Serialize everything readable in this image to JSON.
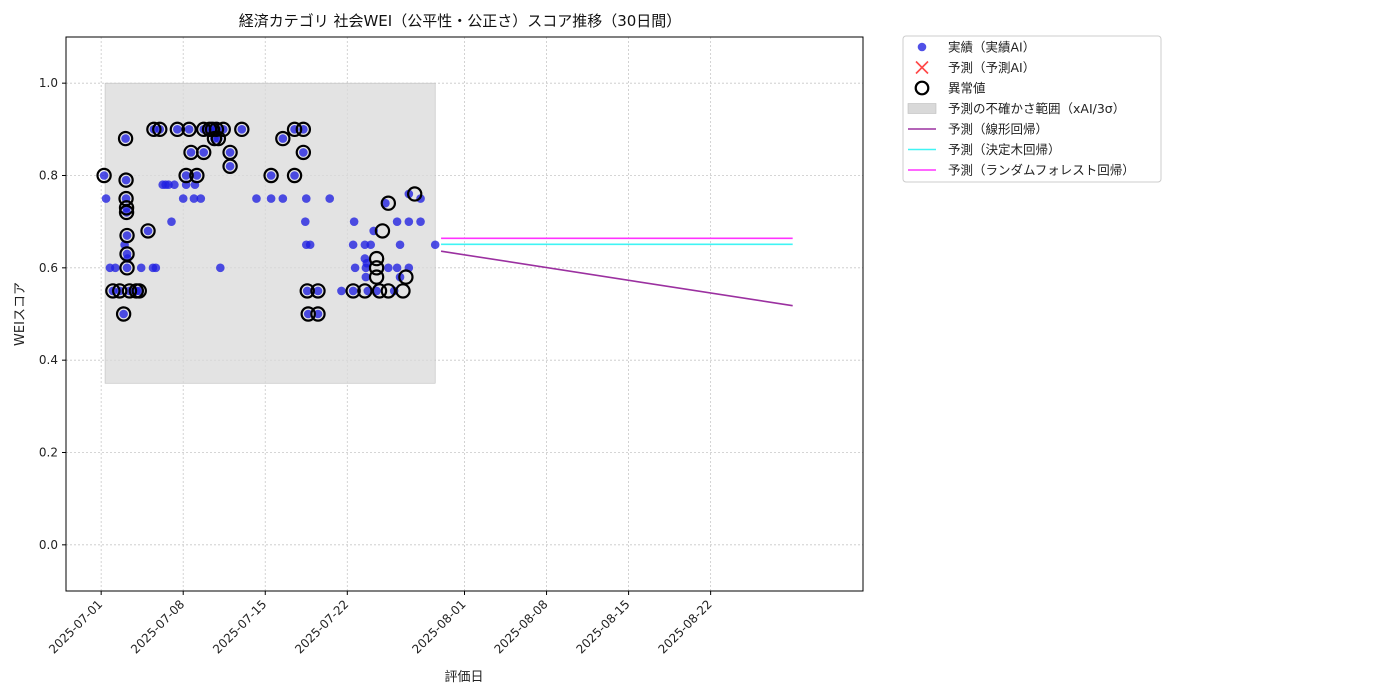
{
  "chart_data": {
    "type": "scatter",
    "title": "経済カテゴリ 社会WEI（公平性・公正さ）スコア推移（30日間）",
    "xlabel": "評価日",
    "ylabel": "WEIスコア",
    "xlim": [
      "2025-06-28",
      "2025-09-04"
    ],
    "ylim": [
      -0.1,
      1.1
    ],
    "x_ticks": [
      "2025-07-01",
      "2025-07-08",
      "2025-07-15",
      "2025-07-22",
      "2025-08-01",
      "2025-08-08",
      "2025-08-15",
      "2025-08-22"
    ],
    "y_ticks": [
      0.0,
      0.2,
      0.4,
      0.6,
      0.8,
      1.0
    ],
    "y_tick_labels": [
      "0.0",
      "0.2",
      "0.4",
      "0.6",
      "0.8",
      "1.0"
    ],
    "grid": true,
    "legend_position": "outside-top-right",
    "colors": {
      "actual": "#1f1fe0",
      "predicted_ai": "#ff3333",
      "anomaly": "#000000",
      "band": "#d9d9d9",
      "linear": "#9b30a0",
      "tree": "#40f4f4",
      "forest": "#ff33ff"
    },
    "uncertainty_band": {
      "x_start": "2025-07-01 08:00",
      "x_end": "2025-07-29 12:00",
      "y_low": 0.35,
      "y_high": 1.0
    },
    "series": [
      {
        "name": "実績（実績AI）",
        "kind": "scatter",
        "points": [
          [
            "2025-07-01 06:00",
            0.8
          ],
          [
            "2025-07-01 10:00",
            0.75
          ],
          [
            "2025-07-01 18:00",
            0.6
          ],
          [
            "2025-07-02 00:00",
            0.55
          ],
          [
            "2025-07-02 05:00",
            0.6
          ],
          [
            "2025-07-02 14:00",
            0.55
          ],
          [
            "2025-07-02 22:00",
            0.5
          ],
          [
            "2025-07-03 00:00",
            0.65
          ],
          [
            "2025-07-03 02:00",
            0.88
          ],
          [
            "2025-07-03 03:00",
            0.79
          ],
          [
            "2025-07-03 03:00",
            0.75
          ],
          [
            "2025-07-03 04:00",
            0.73
          ],
          [
            "2025-07-03 04:00",
            0.72
          ],
          [
            "2025-07-03 05:00",
            0.67
          ],
          [
            "2025-07-03 05:00",
            0.63
          ],
          [
            "2025-07-03 05:00",
            0.6
          ],
          [
            "2025-07-03 06:00",
            0.62
          ],
          [
            "2025-07-03 10:00",
            0.55
          ],
          [
            "2025-07-04 00:00",
            0.55
          ],
          [
            "2025-07-04 06:00",
            0.55
          ],
          [
            "2025-07-04 10:00",
            0.6
          ],
          [
            "2025-07-05 00:00",
            0.68
          ],
          [
            "2025-07-05 10:00",
            0.6
          ],
          [
            "2025-07-05 12:00",
            0.9
          ],
          [
            "2025-07-05 16:00",
            0.6
          ],
          [
            "2025-07-06 00:00",
            0.9
          ],
          [
            "2025-07-06 06:00",
            0.78
          ],
          [
            "2025-07-06 12:00",
            0.78
          ],
          [
            "2025-07-06 18:00",
            0.78
          ],
          [
            "2025-07-07 00:00",
            0.7
          ],
          [
            "2025-07-07 06:00",
            0.78
          ],
          [
            "2025-07-07 12:00",
            0.9
          ],
          [
            "2025-07-08 00:00",
            0.75
          ],
          [
            "2025-07-08 06:00",
            0.8
          ],
          [
            "2025-07-08 06:00",
            0.78
          ],
          [
            "2025-07-08 12:00",
            0.9
          ],
          [
            "2025-07-08 16:00",
            0.85
          ],
          [
            "2025-07-08 22:00",
            0.75
          ],
          [
            "2025-07-09 00:00",
            0.78
          ],
          [
            "2025-07-09 04:00",
            0.8
          ],
          [
            "2025-07-09 12:00",
            0.75
          ],
          [
            "2025-07-09 18:00",
            0.85
          ],
          [
            "2025-07-09 18:00",
            0.9
          ],
          [
            "2025-07-10 06:00",
            0.9
          ],
          [
            "2025-07-10 12:00",
            0.9
          ],
          [
            "2025-07-10 16:00",
            0.88
          ],
          [
            "2025-07-10 20:00",
            0.9
          ],
          [
            "2025-07-11 00:00",
            0.88
          ],
          [
            "2025-07-11 04:00",
            0.6
          ],
          [
            "2025-07-11 10:00",
            0.9
          ],
          [
            "2025-07-12 00:00",
            0.85
          ],
          [
            "2025-07-12 00:00",
            0.82
          ],
          [
            "2025-07-13 00:00",
            0.9
          ],
          [
            "2025-07-14 06:00",
            0.75
          ],
          [
            "2025-07-15 12:00",
            0.8
          ],
          [
            "2025-07-15 12:00",
            0.75
          ],
          [
            "2025-07-16 12:00",
            0.75
          ],
          [
            "2025-07-16 12:00",
            0.88
          ],
          [
            "2025-07-17 12:00",
            0.8
          ],
          [
            "2025-07-17 12:00",
            0.9
          ],
          [
            "2025-07-18 06:00",
            0.9
          ],
          [
            "2025-07-18 06:00",
            0.85
          ],
          [
            "2025-07-18 10:00",
            0.7
          ],
          [
            "2025-07-18 12:00",
            0.65
          ],
          [
            "2025-07-18 12:00",
            0.75
          ],
          [
            "2025-07-18 14:00",
            0.55
          ],
          [
            "2025-07-18 16:00",
            0.5
          ],
          [
            "2025-07-18 20:00",
            0.65
          ],
          [
            "2025-07-19 12:00",
            0.5
          ],
          [
            "2025-07-19 12:00",
            0.55
          ],
          [
            "2025-07-20 12:00",
            0.75
          ],
          [
            "2025-07-21 12:00",
            0.55
          ],
          [
            "2025-07-22 12:00",
            0.55
          ],
          [
            "2025-07-22 12:00",
            0.65
          ],
          [
            "2025-07-22 14:00",
            0.7
          ],
          [
            "2025-07-22 16:00",
            0.6
          ],
          [
            "2025-07-23 12:00",
            0.65
          ],
          [
            "2025-07-23 12:00",
            0.62
          ],
          [
            "2025-07-23 14:00",
            0.6
          ],
          [
            "2025-07-23 14:00",
            0.58
          ],
          [
            "2025-07-23 16:00",
            0.61
          ],
          [
            "2025-07-23 18:00",
            0.55
          ],
          [
            "2025-07-24 00:00",
            0.65
          ],
          [
            "2025-07-24 06:00",
            0.68
          ],
          [
            "2025-07-24 12:00",
            0.55
          ],
          [
            "2025-07-25 06:00",
            0.74
          ],
          [
            "2025-07-25 12:00",
            0.6
          ],
          [
            "2025-07-26 00:00",
            0.55
          ],
          [
            "2025-07-26 06:00",
            0.6
          ],
          [
            "2025-07-26 06:00",
            0.7
          ],
          [
            "2025-07-26 12:00",
            0.65
          ],
          [
            "2025-07-26 12:00",
            0.58
          ],
          [
            "2025-07-27 06:00",
            0.6
          ],
          [
            "2025-07-27 06:00",
            0.7
          ],
          [
            "2025-07-27 06:00",
            0.76
          ],
          [
            "2025-07-28 06:00",
            0.75
          ],
          [
            "2025-07-28 06:00",
            0.7
          ],
          [
            "2025-07-29 12:00",
            0.65
          ]
        ]
      },
      {
        "name": "予測（予測AI）",
        "kind": "scatter",
        "points": []
      },
      {
        "name": "異常値",
        "kind": "anomaly-ring",
        "points": [
          [
            "2025-07-01 06:00",
            0.8
          ],
          [
            "2025-07-02 00:00",
            0.55
          ],
          [
            "2025-07-02 14:00",
            0.55
          ],
          [
            "2025-07-02 22:00",
            0.5
          ],
          [
            "2025-07-03 02:00",
            0.88
          ],
          [
            "2025-07-03 03:00",
            0.79
          ],
          [
            "2025-07-03 03:00",
            0.75
          ],
          [
            "2025-07-03 04:00",
            0.73
          ],
          [
            "2025-07-03 04:00",
            0.72
          ],
          [
            "2025-07-03 05:00",
            0.67
          ],
          [
            "2025-07-03 05:00",
            0.63
          ],
          [
            "2025-07-03 05:00",
            0.6
          ],
          [
            "2025-07-03 10:00",
            0.55
          ],
          [
            "2025-07-04 00:00",
            0.55
          ],
          [
            "2025-07-04 06:00",
            0.55
          ],
          [
            "2025-07-05 00:00",
            0.68
          ],
          [
            "2025-07-05 12:00",
            0.9
          ],
          [
            "2025-07-06 00:00",
            0.9
          ],
          [
            "2025-07-07 12:00",
            0.9
          ],
          [
            "2025-07-08 06:00",
            0.8
          ],
          [
            "2025-07-08 12:00",
            0.9
          ],
          [
            "2025-07-08 16:00",
            0.85
          ],
          [
            "2025-07-09 04:00",
            0.8
          ],
          [
            "2025-07-09 18:00",
            0.85
          ],
          [
            "2025-07-09 18:00",
            0.9
          ],
          [
            "2025-07-10 06:00",
            0.9
          ],
          [
            "2025-07-10 12:00",
            0.9
          ],
          [
            "2025-07-10 16:00",
            0.88
          ],
          [
            "2025-07-10 20:00",
            0.9
          ],
          [
            "2025-07-11 00:00",
            0.88
          ],
          [
            "2025-07-11 10:00",
            0.9
          ],
          [
            "2025-07-12 00:00",
            0.85
          ],
          [
            "2025-07-12 00:00",
            0.82
          ],
          [
            "2025-07-13 00:00",
            0.9
          ],
          [
            "2025-07-15 12:00",
            0.8
          ],
          [
            "2025-07-16 12:00",
            0.88
          ],
          [
            "2025-07-17 12:00",
            0.8
          ],
          [
            "2025-07-17 12:00",
            0.9
          ],
          [
            "2025-07-18 06:00",
            0.9
          ],
          [
            "2025-07-18 06:00",
            0.85
          ],
          [
            "2025-07-18 14:00",
            0.55
          ],
          [
            "2025-07-18 16:00",
            0.5
          ],
          [
            "2025-07-19 12:00",
            0.5
          ],
          [
            "2025-07-19 12:00",
            0.55
          ],
          [
            "2025-07-22 12:00",
            0.55
          ],
          [
            "2025-07-23 12:00",
            0.55
          ],
          [
            "2025-07-24 12:00",
            0.62
          ],
          [
            "2025-07-24 12:00",
            0.6
          ],
          [
            "2025-07-24 12:00",
            0.58
          ],
          [
            "2025-07-24 18:00",
            0.55
          ],
          [
            "2025-07-25 00:00",
            0.68
          ],
          [
            "2025-07-25 12:00",
            0.74
          ],
          [
            "2025-07-25 12:00",
            0.55
          ],
          [
            "2025-07-26 18:00",
            0.55
          ],
          [
            "2025-07-27 00:00",
            0.58
          ],
          [
            "2025-07-27 18:00",
            0.76
          ]
        ]
      },
      {
        "name": "予測の不確かさ範囲（xAI/3σ）",
        "kind": "band"
      },
      {
        "name": "予測（線形回帰）",
        "kind": "line",
        "points": [
          [
            "2025-07-30 00:00",
            0.636
          ],
          [
            "2025-08-29 00:00",
            0.518
          ]
        ]
      },
      {
        "name": "予測（決定木回帰）",
        "kind": "line",
        "points": [
          [
            "2025-07-30 00:00",
            0.651
          ],
          [
            "2025-08-29 00:00",
            0.651
          ]
        ]
      },
      {
        "name": "予測（ランダムフォレスト回帰）",
        "kind": "line",
        "points": [
          [
            "2025-07-30 00:00",
            0.664
          ],
          [
            "2025-08-29 00:00",
            0.664
          ]
        ]
      }
    ]
  }
}
